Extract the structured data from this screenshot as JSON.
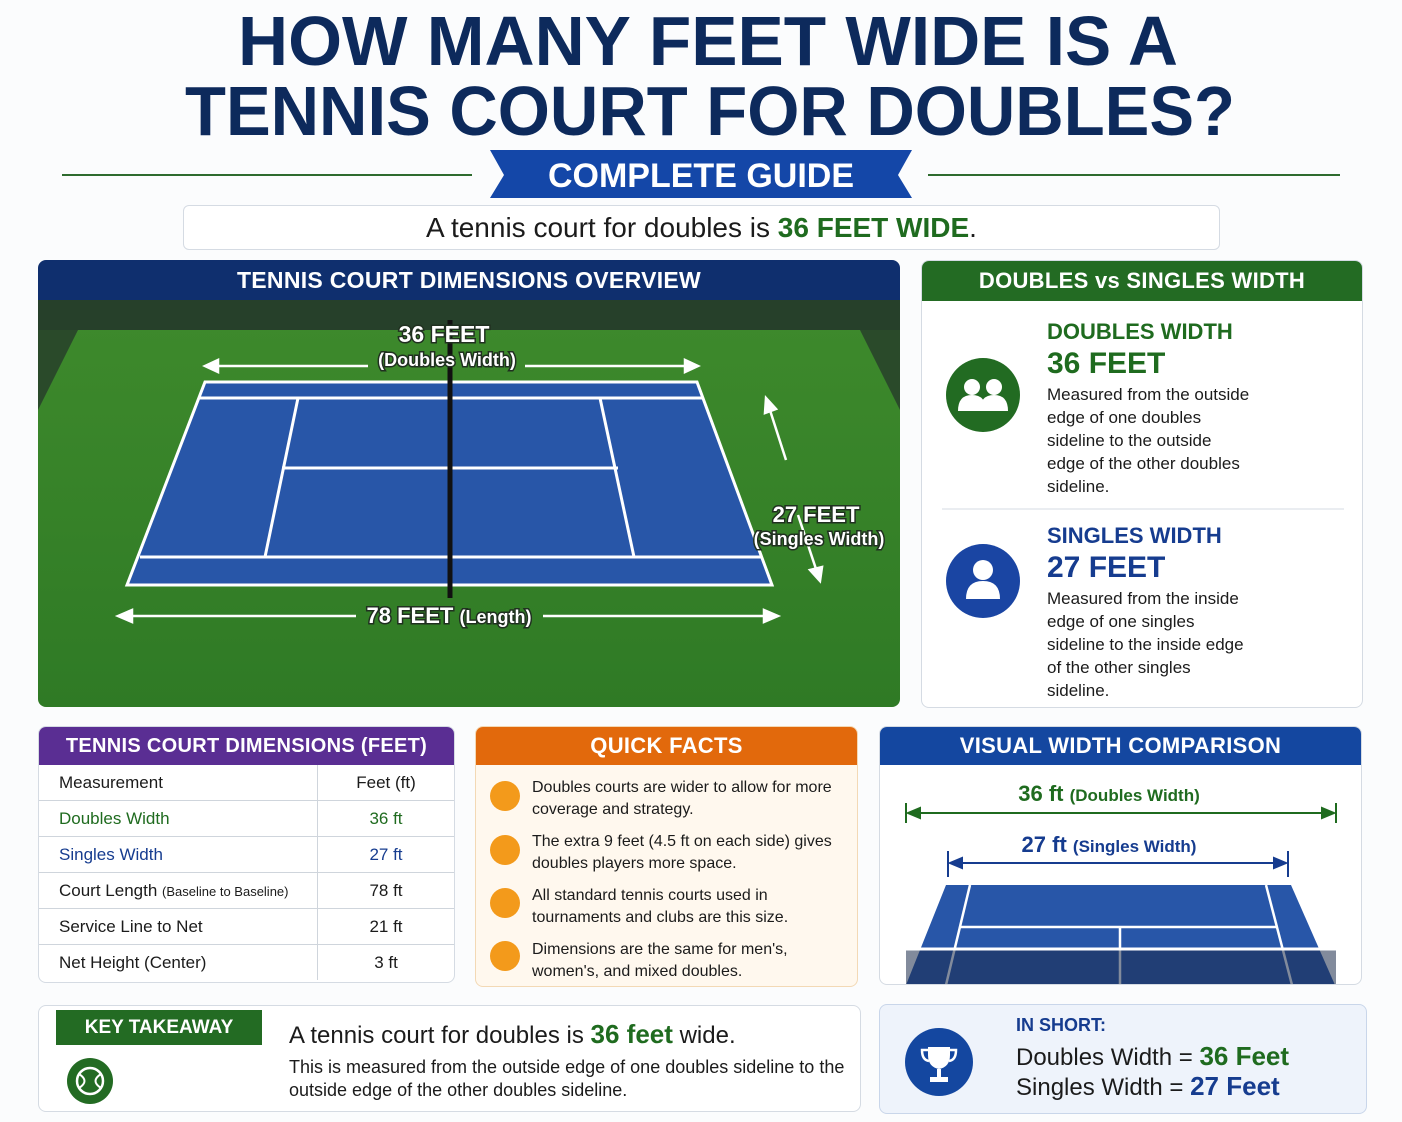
{
  "header": {
    "title_line1": "HOW MANY FEET WIDE IS A",
    "title_line2": "TENNIS COURT FOR DOUBLES?",
    "badge": "COMPLETE GUIDE"
  },
  "answer": {
    "lead": "A tennis court for doubles is",
    "highlight": "36 FEET WIDE",
    "end": "."
  },
  "overview": {
    "title": "TENNIS COURT DIMENSIONS OVERVIEW",
    "width_label": "36 FEET",
    "width_note": "(Doubles Width)",
    "singles_label": "27 FEET",
    "singles_note": "(Singles Width)",
    "length_label": "78 FEET",
    "length_note": "(Length)"
  },
  "comparison": {
    "title": "DOUBLES vs SINGLES WIDTH",
    "items": [
      {
        "heading": "DOUBLES WIDTH",
        "value": "36 FEET",
        "description": "Measured from the outside edge of one doubles sideline to the outside edge of the other doubles sideline."
      },
      {
        "heading": "SINGLES WIDTH",
        "value": "27 FEET",
        "description": "Measured from the inside edge of one singles sideline to the inside edge of the other singles sideline."
      }
    ]
  },
  "table": {
    "title": "TENNIS COURT DIMENSIONS (FEET)",
    "header": [
      "Measurement",
      "Feet (ft)"
    ],
    "rows": [
      {
        "label": "Doubles Width",
        "value": "36 ft"
      },
      {
        "label": "Singles Width",
        "value": "27 ft"
      },
      {
        "label": "Court Length",
        "note": "(Baseline to Baseline)",
        "value": "78 ft"
      },
      {
        "label": "Service Line to Net",
        "value": "21 ft"
      },
      {
        "label": "Net Height (Center)",
        "value": "3 ft"
      }
    ]
  },
  "facts": {
    "title": "QUICK FACTS",
    "items": [
      "Doubles courts are wider to allow for more coverage and strategy.",
      "The extra 9 feet (4.5 ft on each side) gives doubles players more space.",
      "All standard tennis courts used in tournaments and clubs are this size.",
      "Dimensions are the same for men's, women's, and mixed doubles."
    ]
  },
  "visual": {
    "title": "VISUAL WIDTH COMPARISON",
    "doubles_value": "36 ft",
    "doubles_note": "(Doubles Width)",
    "singles_value": "27 ft",
    "singles_note": "(Singles Width)"
  },
  "takeaway": {
    "badge": "KEY TAKEAWAY",
    "lead": "A tennis court for doubles is",
    "highlight": "36 feet",
    "end": "wide.",
    "detail": "This is measured from the outside edge of one doubles sideline to the outside edge of the other doubles sideline."
  },
  "in_short": {
    "title": "IN SHORT:",
    "rows": [
      {
        "label": "Doubles Width",
        "sep": "=",
        "value": "36 Feet"
      },
      {
        "label": "Singles Width",
        "sep": "=",
        "value": "27 Feet"
      }
    ]
  }
}
